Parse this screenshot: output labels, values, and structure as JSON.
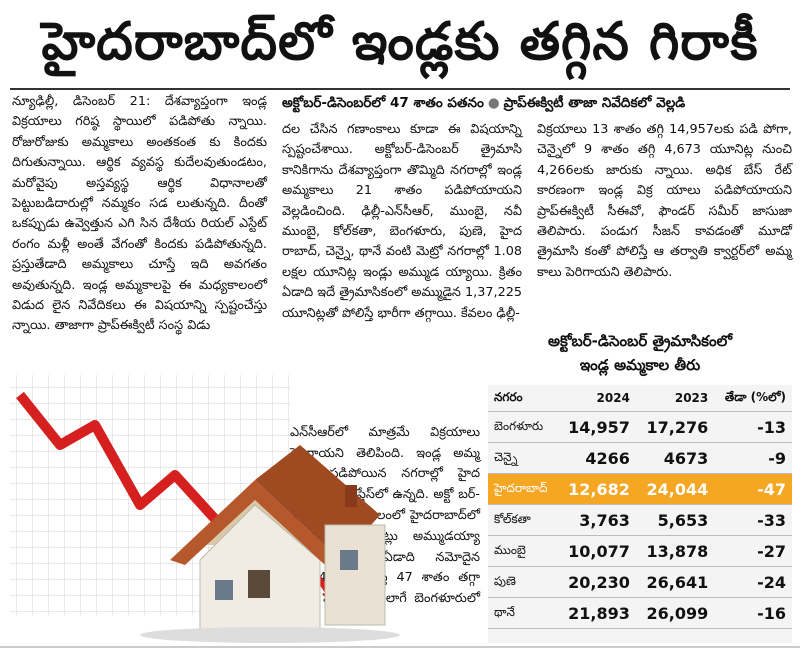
{
  "headline": "హైదరాబాద్‌లో ఇండ్లకు తగ్గిన గిరాకీ",
  "subheadline": {
    "part1": "అక్టోబర్‌-డిసెంబర్‌లో 47 శాతం పతనం",
    "part2": "ప్రాప్‌ఈక్విటీ తాజా నివేదికలో వెల్లడి"
  },
  "article": {
    "col1": "న్యూఢిల్లీ, డిసెంబర్‌ 21: దేశవ్యాప్తంగా ఇండ్ల విక్రయాలు గరిష్ఠ స్థాయిలో పడిపోతు న్నాయి. రోజురోజుకు అమ్మకాలు అంతకంత కు కిందకు దిగుతున్నాయి. ఆర్థిక వ్యవస్థ కుదేలవుతుండటం, మరోవైపు అస్తవ్యస్థ ఆర్థిక విధానాలతో పెట్టుబడిదారుల్లో నమ్మకం సడ లుతున్నది. దీంతో ఒకప్పుడు ఉవ్వెత్తున ఎగి సిన దేశీయ రియల్‌ ఎస్టేట్‌ రంగం మళ్లీ అంతే వేగంతో కిందకు పడిపోతున్నది. ప్రస్తుతేడాది అమ్మకాలు చూస్తే ఇది అవగతం అవుతున్నది. ఇండ్ల అమ్మకాలపై ఈ మధ్యకాలంలో విడుద లైన నివేదికలు ఈ విషయాన్ని స్పష్టంచేస్తు న్నాయి. తాజాగా ప్రాప్‌ఈక్విటీ సంస్థ విడు",
    "col2": "దల చేసిన గణాంకాలు కూడా ఈ విషయాన్ని స్పష్టంచేశాయి. అక్టోబర్‌-డిసెంబర్‌ త్రైమాసి కానికిగాను దేశవ్యాప్తంగా తొమ్మిది నగరాల్లో ఇండ్ల అమ్మకాలు 21 శాతం పడిపోయాయని వెల్లడించింది. ఢిల్లీ-ఎన్‌సీఆర్‌, ముంబై, నవీ ముంబై, కోల్‌కతా, బెంగళూరు, పుణె, హైద రాబాద్‌, చెన్నై, థానే వంటి మెట్రో నగరాల్లో 1.08 లక్షల యూనిట్ల ఇండ్లు అమ్ముడ య్యాయి. క్రితం ఏడాది ఇదే త్రైమాసికంలో అమ్ముడైన 1,37,225 యూనిట్లతో పోలిస్తే భారీగా తగ్గాయి. కేవలం ఢిల్లీ-",
    "col2b": "ఎన్‌సీఆర్‌లో మాత్రమే విక్రయాలు పెరిగాయని తెలిపింది. ఇండ్ల అమ్మ కాలు పడిపోయిన నగరాల్లో హైద రాబాద్‌ టాప్‌ ప్లేస్‌లో ఉన్నది. అక్టో బర్‌-డిసెంబర్‌ మధ్యకాలంలో హైదరాబాద్‌లో 12,682 యూనిట్లు అమ్ముడయ్యా యని, క్రితం ఏడాది నమోదైన 24,044తో పోలిస్తే 47 శాతం తగ్గా యని పేర్కొంది. అలాగే బెంగళూరులో గృహ",
    "col3": "విక్రయాలు 13 శాతం తగ్గి 14,957లకు పడి పోగా, చెన్నైలో 9 శాతం తగ్గి 4,673 యూనిట్ల నుంచి 4,266లకు జారుకు న్నాయి. అధిక బేస్‌ రేట్‌ కారణంగా ఇండ్ల విక్ర యాలు పడిపోయాయని ప్రాప్‌ఈక్విటీ సీఈవో, ఫౌండర్‌ సమీర్‌ జాసుజా తెలిపారు. పండుగ సీజన్‌ కావడంతో మూడో త్రైమాసి కంతో పోలిస్తే ఆ తర్వాతి క్వార్టర్‌లో అమ్మ కాలు పెరిగాయని తెలిపారు."
  },
  "table": {
    "title_line1": "అక్టోబర్‌-డిసెంబర్‌ త్రైమాసికంలో",
    "title_line2": "ఇండ్ల అమ్మకాల తీరు",
    "headers": [
      "నగరం",
      "2024",
      "2023",
      "తేడా (%లో)"
    ],
    "rows": [
      {
        "city": "బెంగళూరు",
        "y2024": "14,957",
        "y2023": "17,276",
        "diff": "-13"
      },
      {
        "city": "చెన్నై",
        "y2024": "4266",
        "y2023": "4673",
        "diff": "-9"
      },
      {
        "city": "హైదరాబాద్‌",
        "y2024": "12,682",
        "y2023": "24,044",
        "diff": "-47"
      },
      {
        "city": "కోల్‌కతా",
        "y2024": "3,763",
        "y2023": "5,653",
        "diff": "-33"
      },
      {
        "city": "ముంబై",
        "y2024": "10,077",
        "y2023": "13,878",
        "diff": "-27"
      },
      {
        "city": "పుణె",
        "y2024": "20,230",
        "y2023": "26,641",
        "diff": "-24"
      },
      {
        "city": "థానే",
        "y2024": "21,893",
        "y2023": "26,099",
        "diff": "-16"
      }
    ],
    "highlight_color": "#f5a623"
  },
  "illustration": {
    "icon": "house-with-falling-graph-icon",
    "arrow_color": "#d6201f",
    "roof_color": "#b5582c"
  }
}
